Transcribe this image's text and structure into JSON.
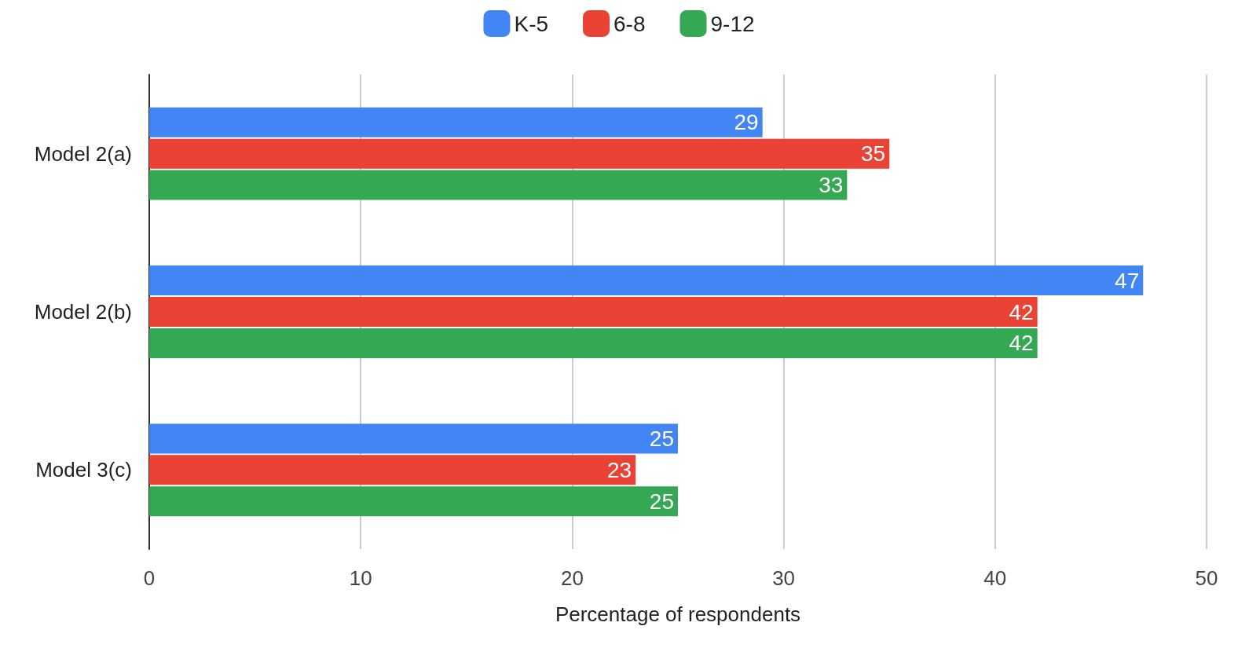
{
  "chart_data": {
    "type": "bar",
    "orientation": "horizontal",
    "xlabel": "Percentage of respondents",
    "categories": [
      "Model 2(a)",
      "Model 2(b)",
      "Model 3(c)"
    ],
    "series": [
      {
        "name": "K-5",
        "color": "#4285f4",
        "values": [
          29,
          47,
          25
        ]
      },
      {
        "name": "6-8",
        "color": "#ea4335",
        "values": [
          35,
          42,
          23
        ]
      },
      {
        "name": "9-12",
        "color": "#34a853",
        "values": [
          33,
          42,
          25
        ]
      }
    ],
    "xlim": [
      0,
      50
    ],
    "xticks": [
      0,
      10,
      20,
      30,
      40,
      50
    ],
    "grid": "x",
    "legend": "top",
    "data_labels": true
  }
}
